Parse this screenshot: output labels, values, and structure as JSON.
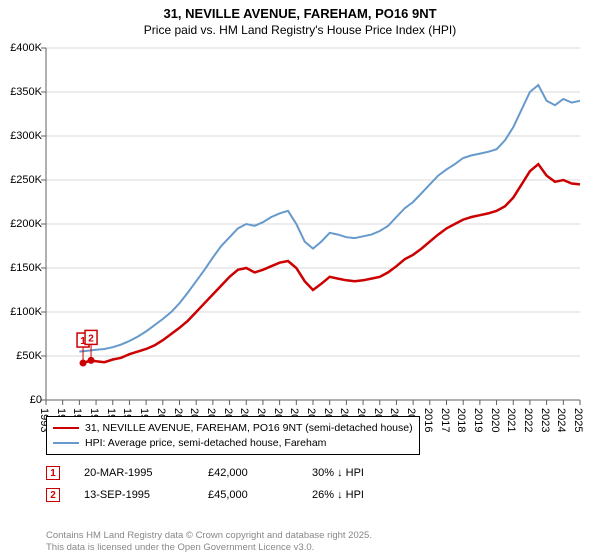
{
  "title": "31, NEVILLE AVENUE, FAREHAM, PO16 9NT",
  "subtitle": "Price paid vs. HM Land Registry's House Price Index (HPI)",
  "chart": {
    "type": "line",
    "background_color": "#ffffff",
    "grid_color": "#d9d9d9",
    "axis_color": "#606060",
    "tick_font_size": 11,
    "x": {
      "min": 1993,
      "max": 2025,
      "ticks": [
        1993,
        1994,
        1995,
        1996,
        1997,
        1998,
        1999,
        2000,
        2001,
        2002,
        2003,
        2004,
        2005,
        2006,
        2007,
        2008,
        2009,
        2010,
        2011,
        2012,
        2013,
        2014,
        2015,
        2016,
        2017,
        2018,
        2019,
        2020,
        2021,
        2022,
        2023,
        2024,
        2025
      ]
    },
    "y": {
      "min": 0,
      "max": 400000,
      "ticks": [
        0,
        50000,
        100000,
        150000,
        200000,
        250000,
        300000,
        350000,
        400000
      ],
      "labels": [
        "£0",
        "£50K",
        "£100K",
        "£150K",
        "£200K",
        "£250K",
        "£300K",
        "£350K",
        "£400K"
      ]
    },
    "series": [
      {
        "name": "address",
        "label": "31, NEVILLE AVENUE, FAREHAM, PO16 9NT (semi-detached house)",
        "color": "#cc0000",
        "line_width": 2.5,
        "data": [
          [
            1995.2,
            42000
          ],
          [
            1995.7,
            45000
          ],
          [
            1996,
            44000
          ],
          [
            1996.5,
            43000
          ],
          [
            1997,
            46000
          ],
          [
            1997.5,
            48000
          ],
          [
            1998,
            52000
          ],
          [
            1998.5,
            55000
          ],
          [
            1999,
            58000
          ],
          [
            1999.5,
            62000
          ],
          [
            2000,
            68000
          ],
          [
            2000.5,
            75000
          ],
          [
            2001,
            82000
          ],
          [
            2001.5,
            90000
          ],
          [
            2002,
            100000
          ],
          [
            2002.5,
            110000
          ],
          [
            2003,
            120000
          ],
          [
            2003.5,
            130000
          ],
          [
            2004,
            140000
          ],
          [
            2004.5,
            148000
          ],
          [
            2005,
            150000
          ],
          [
            2005.5,
            145000
          ],
          [
            2006,
            148000
          ],
          [
            2006.5,
            152000
          ],
          [
            2007,
            156000
          ],
          [
            2007.5,
            158000
          ],
          [
            2008,
            150000
          ],
          [
            2008.5,
            135000
          ],
          [
            2009,
            125000
          ],
          [
            2009.5,
            132000
          ],
          [
            2010,
            140000
          ],
          [
            2010.5,
            138000
          ],
          [
            2011,
            136000
          ],
          [
            2011.5,
            135000
          ],
          [
            2012,
            136000
          ],
          [
            2012.5,
            138000
          ],
          [
            2013,
            140000
          ],
          [
            2013.5,
            145000
          ],
          [
            2014,
            152000
          ],
          [
            2014.5,
            160000
          ],
          [
            2015,
            165000
          ],
          [
            2015.5,
            172000
          ],
          [
            2016,
            180000
          ],
          [
            2016.5,
            188000
          ],
          [
            2017,
            195000
          ],
          [
            2017.5,
            200000
          ],
          [
            2018,
            205000
          ],
          [
            2018.5,
            208000
          ],
          [
            2019,
            210000
          ],
          [
            2019.5,
            212000
          ],
          [
            2020,
            215000
          ],
          [
            2020.5,
            220000
          ],
          [
            2021,
            230000
          ],
          [
            2021.5,
            245000
          ],
          [
            2022,
            260000
          ],
          [
            2022.5,
            268000
          ],
          [
            2023,
            255000
          ],
          [
            2023.5,
            248000
          ],
          [
            2024,
            250000
          ],
          [
            2024.5,
            246000
          ],
          [
            2025,
            245000
          ]
        ]
      },
      {
        "name": "hpi",
        "label": "HPI: Average price, semi-detached house, Fareham",
        "color": "#6699cc",
        "line_width": 2,
        "data": [
          [
            1995,
            55000
          ],
          [
            1995.5,
            56000
          ],
          [
            1996,
            57000
          ],
          [
            1996.5,
            58000
          ],
          [
            1997,
            60000
          ],
          [
            1997.5,
            63000
          ],
          [
            1998,
            67000
          ],
          [
            1998.5,
            72000
          ],
          [
            1999,
            78000
          ],
          [
            1999.5,
            85000
          ],
          [
            2000,
            92000
          ],
          [
            2000.5,
            100000
          ],
          [
            2001,
            110000
          ],
          [
            2001.5,
            122000
          ],
          [
            2002,
            135000
          ],
          [
            2002.5,
            148000
          ],
          [
            2003,
            162000
          ],
          [
            2003.5,
            175000
          ],
          [
            2004,
            185000
          ],
          [
            2004.5,
            195000
          ],
          [
            2005,
            200000
          ],
          [
            2005.5,
            198000
          ],
          [
            2006,
            202000
          ],
          [
            2006.5,
            208000
          ],
          [
            2007,
            212000
          ],
          [
            2007.5,
            215000
          ],
          [
            2008,
            200000
          ],
          [
            2008.5,
            180000
          ],
          [
            2009,
            172000
          ],
          [
            2009.5,
            180000
          ],
          [
            2010,
            190000
          ],
          [
            2010.5,
            188000
          ],
          [
            2011,
            185000
          ],
          [
            2011.5,
            184000
          ],
          [
            2012,
            186000
          ],
          [
            2012.5,
            188000
          ],
          [
            2013,
            192000
          ],
          [
            2013.5,
            198000
          ],
          [
            2014,
            208000
          ],
          [
            2014.5,
            218000
          ],
          [
            2015,
            225000
          ],
          [
            2015.5,
            235000
          ],
          [
            2016,
            245000
          ],
          [
            2016.5,
            255000
          ],
          [
            2017,
            262000
          ],
          [
            2017.5,
            268000
          ],
          [
            2018,
            275000
          ],
          [
            2018.5,
            278000
          ],
          [
            2019,
            280000
          ],
          [
            2019.5,
            282000
          ],
          [
            2020,
            285000
          ],
          [
            2020.5,
            295000
          ],
          [
            2021,
            310000
          ],
          [
            2021.5,
            330000
          ],
          [
            2022,
            350000
          ],
          [
            2022.5,
            358000
          ],
          [
            2023,
            340000
          ],
          [
            2023.5,
            335000
          ],
          [
            2024,
            342000
          ],
          [
            2024.5,
            338000
          ],
          [
            2025,
            340000
          ]
        ]
      }
    ],
    "markers": [
      {
        "n": "1",
        "x": 1995.22,
        "y": 42000,
        "color": "#cc0000"
      },
      {
        "n": "2",
        "x": 1995.7,
        "y": 45000,
        "color": "#cc0000"
      }
    ]
  },
  "legend": {
    "border_color": "#000000",
    "items": [
      {
        "color": "#cc0000",
        "label": "31, NEVILLE AVENUE, FAREHAM, PO16 9NT (semi-detached house)"
      },
      {
        "color": "#6699cc",
        "label": "HPI: Average price, semi-detached house, Fareham"
      }
    ]
  },
  "table": {
    "rows": [
      {
        "n": "1",
        "color": "#cc0000",
        "date": "20-MAR-1995",
        "price": "£42,000",
        "pct": "30% ↓ HPI"
      },
      {
        "n": "2",
        "color": "#cc0000",
        "date": "13-SEP-1995",
        "price": "£45,000",
        "pct": "26% ↓ HPI"
      }
    ]
  },
  "footer": {
    "line1": "Contains HM Land Registry data © Crown copyright and database right 2025.",
    "line2": "This data is licensed under the Open Government Licence v3.0."
  }
}
